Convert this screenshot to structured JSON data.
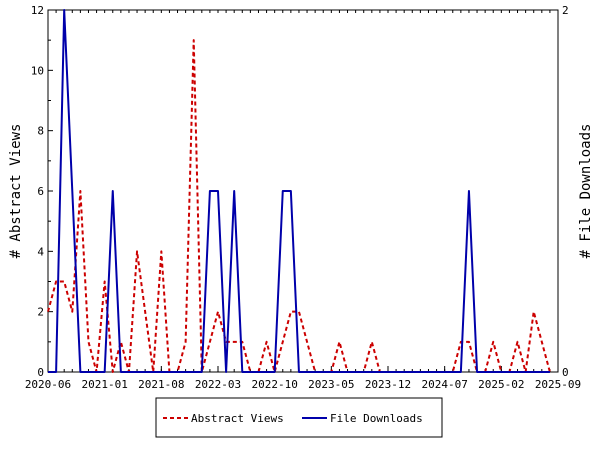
{
  "chart_data": {
    "type": "line",
    "title": "",
    "xlabel": "",
    "ylabel": "# Abstract Views",
    "y2label": "# File Downloads",
    "x_tick_labels": [
      "2020-06",
      "2021-01",
      "2021-08",
      "2022-03",
      "2022-10",
      "2023-05",
      "2023-12",
      "2024-07",
      "2025-02",
      "2025-09"
    ],
    "x_range_months": [
      "2020-06",
      "2025-09"
    ],
    "ylim": [
      0,
      12
    ],
    "y_ticks": [
      0,
      2,
      4,
      6,
      8,
      10,
      12
    ],
    "y2lim": [
      0,
      2
    ],
    "y2_ticks": [
      0,
      2
    ],
    "legend_position": "bottom-center",
    "grid": false,
    "series": [
      {
        "name": "Abstract Views",
        "axis": "left",
        "color": "#cc0000",
        "dash": true,
        "points": [
          [
            "2020-06",
            2
          ],
          [
            "2020-07",
            3
          ],
          [
            "2020-08",
            3
          ],
          [
            "2020-09",
            2
          ],
          [
            "2020-10",
            6
          ],
          [
            "2020-11",
            1
          ],
          [
            "2020-12",
            0
          ],
          [
            "2021-01",
            3
          ],
          [
            "2021-02",
            0
          ],
          [
            "2021-03",
            1
          ],
          [
            "2021-04",
            0
          ],
          [
            "2021-05",
            4
          ],
          [
            "2021-06",
            2
          ],
          [
            "2021-07",
            0
          ],
          [
            "2021-08",
            4
          ],
          [
            "2021-09",
            0
          ],
          [
            "2021-10",
            0
          ],
          [
            "2021-11",
            1
          ],
          [
            "2021-12",
            11
          ],
          [
            "2022-01",
            0
          ],
          [
            "2022-02",
            1
          ],
          [
            "2022-03",
            2
          ],
          [
            "2022-04",
            1
          ],
          [
            "2022-05",
            1
          ],
          [
            "2022-06",
            1
          ],
          [
            "2022-07",
            0
          ],
          [
            "2022-08",
            0
          ],
          [
            "2022-09",
            1
          ],
          [
            "2022-10",
            0
          ],
          [
            "2022-11",
            1
          ],
          [
            "2022-12",
            2
          ],
          [
            "2023-01",
            2
          ],
          [
            "2023-02",
            1
          ],
          [
            "2023-03",
            0
          ],
          [
            "2023-04",
            0
          ],
          [
            "2023-05",
            0
          ],
          [
            "2023-06",
            1
          ],
          [
            "2023-07",
            0
          ],
          [
            "2023-08",
            0
          ],
          [
            "2023-09",
            0
          ],
          [
            "2023-10",
            1
          ],
          [
            "2023-11",
            0
          ],
          [
            "2023-12",
            0
          ],
          [
            "2024-01",
            0
          ],
          [
            "2024-02",
            0
          ],
          [
            "2024-03",
            0
          ],
          [
            "2024-04",
            0
          ],
          [
            "2024-05",
            0
          ],
          [
            "2024-06",
            0
          ],
          [
            "2024-07",
            0
          ],
          [
            "2024-08",
            0
          ],
          [
            "2024-09",
            1
          ],
          [
            "2024-10",
            1
          ],
          [
            "2024-11",
            0
          ],
          [
            "2024-12",
            0
          ],
          [
            "2025-01",
            1
          ],
          [
            "2025-02",
            0
          ],
          [
            "2025-03",
            0
          ],
          [
            "2025-04",
            1
          ],
          [
            "2025-05",
            0
          ],
          [
            "2025-06",
            2
          ],
          [
            "2025-07",
            1
          ],
          [
            "2025-08",
            0
          ]
        ]
      },
      {
        "name": "File Downloads",
        "axis": "right",
        "color": "#0000aa",
        "dash": false,
        "points": [
          [
            "2020-06",
            0
          ],
          [
            "2020-07",
            0
          ],
          [
            "2020-08",
            2
          ],
          [
            "2020-09",
            1
          ],
          [
            "2020-10",
            0
          ],
          [
            "2020-11",
            0
          ],
          [
            "2020-12",
            0
          ],
          [
            "2021-01",
            0
          ],
          [
            "2021-02",
            1
          ],
          [
            "2021-03",
            0
          ],
          [
            "2021-04",
            0
          ],
          [
            "2021-05",
            0
          ],
          [
            "2021-06",
            0
          ],
          [
            "2021-07",
            0
          ],
          [
            "2021-08",
            0
          ],
          [
            "2021-09",
            0
          ],
          [
            "2021-10",
            0
          ],
          [
            "2021-11",
            0
          ],
          [
            "2021-12",
            0
          ],
          [
            "2022-01",
            0
          ],
          [
            "2022-02",
            1
          ],
          [
            "2022-03",
            1
          ],
          [
            "2022-04",
            0
          ],
          [
            "2022-05",
            1
          ],
          [
            "2022-06",
            0
          ],
          [
            "2022-07",
            0
          ],
          [
            "2022-08",
            0
          ],
          [
            "2022-09",
            0
          ],
          [
            "2022-10",
            0
          ],
          [
            "2022-11",
            1
          ],
          [
            "2022-12",
            1
          ],
          [
            "2023-01",
            0
          ],
          [
            "2023-02",
            0
          ],
          [
            "2023-03",
            0
          ],
          [
            "2023-04",
            0
          ],
          [
            "2023-05",
            0
          ],
          [
            "2023-06",
            0
          ],
          [
            "2023-07",
            0
          ],
          [
            "2023-08",
            0
          ],
          [
            "2023-09",
            0
          ],
          [
            "2023-10",
            0
          ],
          [
            "2023-11",
            0
          ],
          [
            "2023-12",
            0
          ],
          [
            "2024-01",
            0
          ],
          [
            "2024-02",
            0
          ],
          [
            "2024-03",
            0
          ],
          [
            "2024-04",
            0
          ],
          [
            "2024-05",
            0
          ],
          [
            "2024-06",
            0
          ],
          [
            "2024-07",
            0
          ],
          [
            "2024-08",
            0
          ],
          [
            "2024-09",
            0
          ],
          [
            "2024-10",
            1
          ],
          [
            "2024-11",
            0
          ],
          [
            "2024-12",
            0
          ],
          [
            "2025-01",
            0
          ],
          [
            "2025-02",
            0
          ],
          [
            "2025-03",
            0
          ],
          [
            "2025-04",
            0
          ],
          [
            "2025-05",
            0
          ],
          [
            "2025-06",
            0
          ],
          [
            "2025-07",
            0
          ],
          [
            "2025-08",
            0
          ]
        ]
      }
    ]
  }
}
